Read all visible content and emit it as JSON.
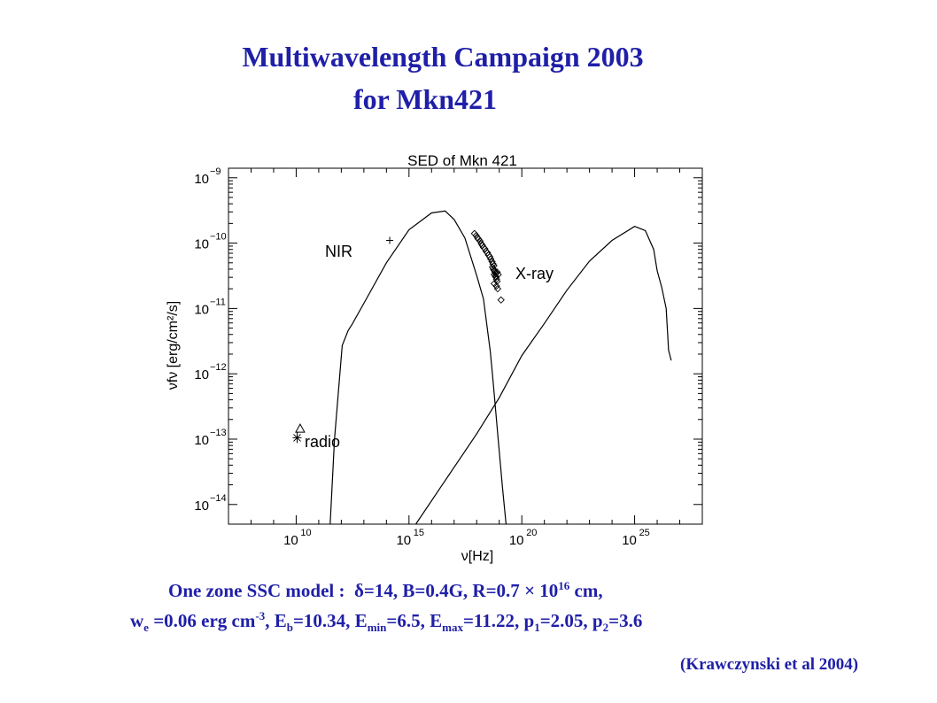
{
  "header": {
    "title_line1": "Multiwavelength Campaign 2003",
    "title_line2": "for Mkn421"
  },
  "chart_data": {
    "type": "scatter",
    "title": "SED of Mkn 421",
    "xlabel": "ν[Hz]",
    "ylabel": "νfν [erg/cm²/s]",
    "x_scale": "log",
    "y_scale": "log",
    "xlim": [
      10000000.0,
      1e+28
    ],
    "ylim": [
      5e-15,
      1.4e-09
    ],
    "x_ticks": [
      {
        "value": 10000000000.0,
        "base": "10",
        "exp": "10"
      },
      {
        "value": 1000000000000000.0,
        "base": "10",
        "exp": "15"
      },
      {
        "value": 1e+20,
        "base": "10",
        "exp": "20"
      },
      {
        "value": 1e+25,
        "base": "10",
        "exp": "25"
      }
    ],
    "y_ticks": [
      {
        "value": 1e-09,
        "base": "10",
        "exp": "−9"
      },
      {
        "value": 1e-10,
        "base": "10",
        "exp": "−10"
      },
      {
        "value": 1e-11,
        "base": "10",
        "exp": "−11"
      },
      {
        "value": 1e-12,
        "base": "10",
        "exp": "−12"
      },
      {
        "value": 1e-13,
        "base": "10",
        "exp": "−13"
      },
      {
        "value": 1e-14,
        "base": "10",
        "exp": "−14"
      }
    ],
    "series": [
      {
        "kind": "curve",
        "points": [
          [
            320000000000.0,
            5e-15
          ],
          [
            500000000000.0,
            1e-13
          ],
          [
            1100000000000.0,
            2.7e-12
          ],
          [
            2000000000000.0,
            4.6e-12
          ],
          [
            3000000000000.0,
            5.7e-12
          ],
          [
            10000000000000.0,
            1.2e-11
          ],
          [
            100000000000000.0,
            5e-11
          ],
          [
            1000000000000000.0,
            1.6e-10
          ],
          [
            1e+16,
            2.9e-10
          ],
          [
            4e+16,
            3.1e-10
          ],
          [
            1e+17,
            2.3e-10
          ],
          [
            3e+17,
            1.2e-10
          ],
          [
            1e+18,
            3.2e-11
          ],
          [
            2e+18,
            1.4e-11
          ],
          [
            4e+18,
            2.2e-12
          ],
          [
            5e+18,
            1e-12
          ],
          [
            6e+18,
            4.8e-13
          ],
          [
            9e+18,
            1e-13
          ],
          [
            1.4e+19,
            1.8e-14
          ],
          [
            2e+19,
            5e-15
          ]
        ]
      },
      {
        "kind": "curve",
        "points": [
          [
            2000000000000000.0,
            5e-15
          ],
          [
            3e+16,
            2e-14
          ],
          [
            1e+18,
            1.2e-13
          ],
          [
            1e+19,
            4.3e-13
          ],
          [
            1e+20,
            1.9e-12
          ],
          [
            1e+21,
            5.9e-12
          ],
          [
            1e+22,
            1.9e-11
          ],
          [
            1e+23,
            5.3e-11
          ],
          [
            1e+24,
            1.1e-10
          ],
          [
            1e+25,
            1.8e-10
          ],
          [
            3e+25,
            1.55e-10
          ],
          [
            7e+25,
            8e-11
          ],
          [
            1e+26,
            3.8e-11
          ],
          [
            1.6e+26,
            2.1e-11
          ],
          [
            2.5e+26,
            1e-11
          ],
          [
            3.2e+26,
            2.3e-12
          ],
          [
            4.2e+26,
            1.6e-12
          ]
        ]
      },
      {
        "kind": "x-ray-diamonds",
        "points": [
          [
            8e+17,
            1.4e-10
          ],
          [
            9.5e+17,
            1.3e-10
          ],
          [
            1.1e+18,
            1.2e-10
          ],
          [
            1.2e+18,
            1.15e-10
          ],
          [
            1.4e+18,
            1.08e-10
          ],
          [
            1.6e+18,
            9.8e-11
          ],
          [
            1.8e+18,
            9.2e-11
          ],
          [
            2e+18,
            8.6e-11
          ],
          [
            2.3e+18,
            8.2e-11
          ],
          [
            2.6e+18,
            7.5e-11
          ],
          [
            3e+18,
            7.1e-11
          ],
          [
            3.3e+18,
            6.6e-11
          ],
          [
            3.8e+18,
            6.2e-11
          ],
          [
            4.2e+18,
            5.7e-11
          ],
          [
            4.8e+18,
            5.2e-11
          ],
          [
            5.3e+18,
            4.8e-11
          ],
          [
            5.8e+18,
            4.5e-11
          ],
          [
            5e+18,
            4.3e-11
          ],
          [
            5.5e+18,
            4e-11
          ],
          [
            6e+18,
            3.8e-11
          ],
          [
            6.5e+18,
            3.6e-11
          ],
          [
            7e+18,
            3.4e-11
          ],
          [
            6e+18,
            3.3e-11
          ],
          [
            6.8e+18,
            3.1e-11
          ],
          [
            7.2e+18,
            3e-11
          ],
          [
            7.6e+18,
            2.8e-11
          ],
          [
            8e+18,
            2.6e-11
          ],
          [
            6e+18,
            2.4e-11
          ],
          [
            7.5e+18,
            2.2e-11
          ],
          [
            8.5e+18,
            2e-11
          ],
          [
            9e+18,
            3.3e-11
          ],
          [
            8e+18,
            3.6e-11
          ],
          [
            1.2e+19,
            1.35e-11
          ]
        ]
      },
      {
        "kind": "NIR",
        "marker": "plus",
        "points": [
          [
            140000000000000.0,
            1.1e-10
          ]
        ]
      },
      {
        "kind": "radio",
        "marker": "triangle",
        "points": [
          [
            15000000000.0,
            1.45e-13
          ]
        ]
      },
      {
        "kind": "radio",
        "marker": "asterisk",
        "points": [
          [
            11000000000.0,
            1.05e-13
          ]
        ]
      }
    ],
    "annotations": [
      {
        "text": "NIR"
      },
      {
        "text": "X-ray"
      },
      {
        "text": "radio"
      }
    ]
  },
  "model": {
    "line1_prefix": "One zone SSC model :",
    "delta_symbol": "δ",
    "line1_params": "=14, B=0.4G, R=0.7",
    "times_symbol": "×",
    "r_base": "10",
    "r_exp": "16",
    "r_unit": "cm,",
    "we_sym": "w",
    "we_sub": "e",
    "we_val": "=0.06 erg cm",
    "we_exp": "-3",
    "eb_sep": ", E",
    "eb_sub": "b",
    "eb_val": "=10.34, E",
    "emin_sub": "min",
    "emin_val": "=6.5, E",
    "emax_sub": "max",
    "emax_val": "=11.22, p",
    "p1_sub": "1",
    "p1_val": "=2.05, p",
    "p2_sub": "2",
    "p2_val": "=3.6"
  },
  "citation": "(Krawczynski et al 2004)"
}
